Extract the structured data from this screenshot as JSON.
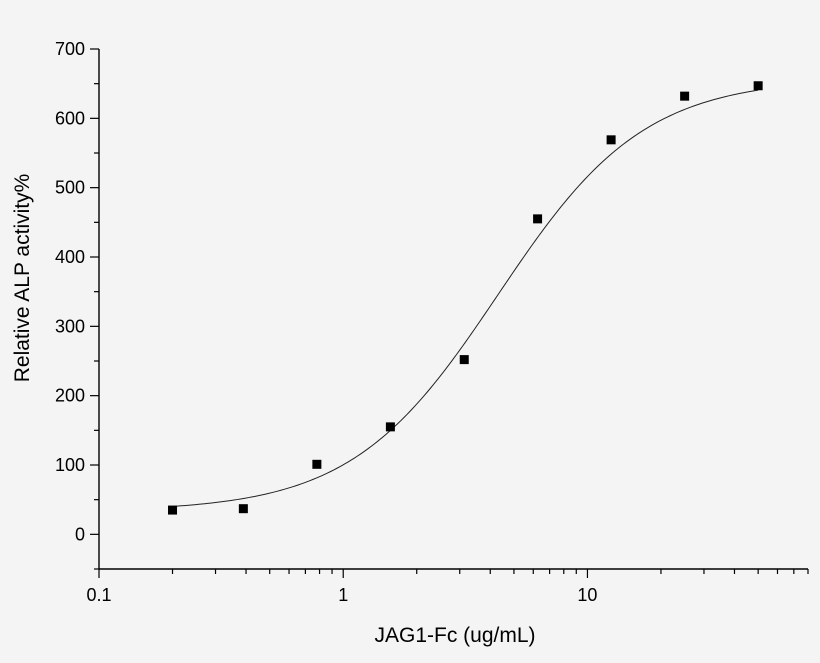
{
  "chart_data": {
    "type": "scatter",
    "xlabel": "JAG1-Fc (ug/mL)",
    "ylabel": "Relative ALP activity%",
    "x_scale": "log",
    "xlim": [
      0.1,
      80
    ],
    "ylim": [
      -50,
      700
    ],
    "x_ticks": [
      0.1,
      1,
      10
    ],
    "x_tick_labels": [
      "0.1",
      "1",
      "10"
    ],
    "y_ticks": [
      0,
      100,
      200,
      300,
      400,
      500,
      600,
      700
    ],
    "y_tick_labels": [
      "0",
      "100",
      "200",
      "300",
      "400",
      "500",
      "600",
      "700"
    ],
    "grid": false,
    "legend": "none",
    "series": [
      {
        "marker": "square",
        "x": [
          0.2,
          0.39,
          0.78,
          1.56,
          3.13,
          6.25,
          12.5,
          25,
          50
        ],
        "y": [
          35,
          37,
          101,
          155,
          252,
          455,
          569,
          632,
          647
        ]
      }
    ],
    "fit_curve": {
      "model": "4-parameter logistic",
      "bottom": 33,
      "top": 658,
      "ec50": 4.3,
      "hill": 1.45
    }
  }
}
